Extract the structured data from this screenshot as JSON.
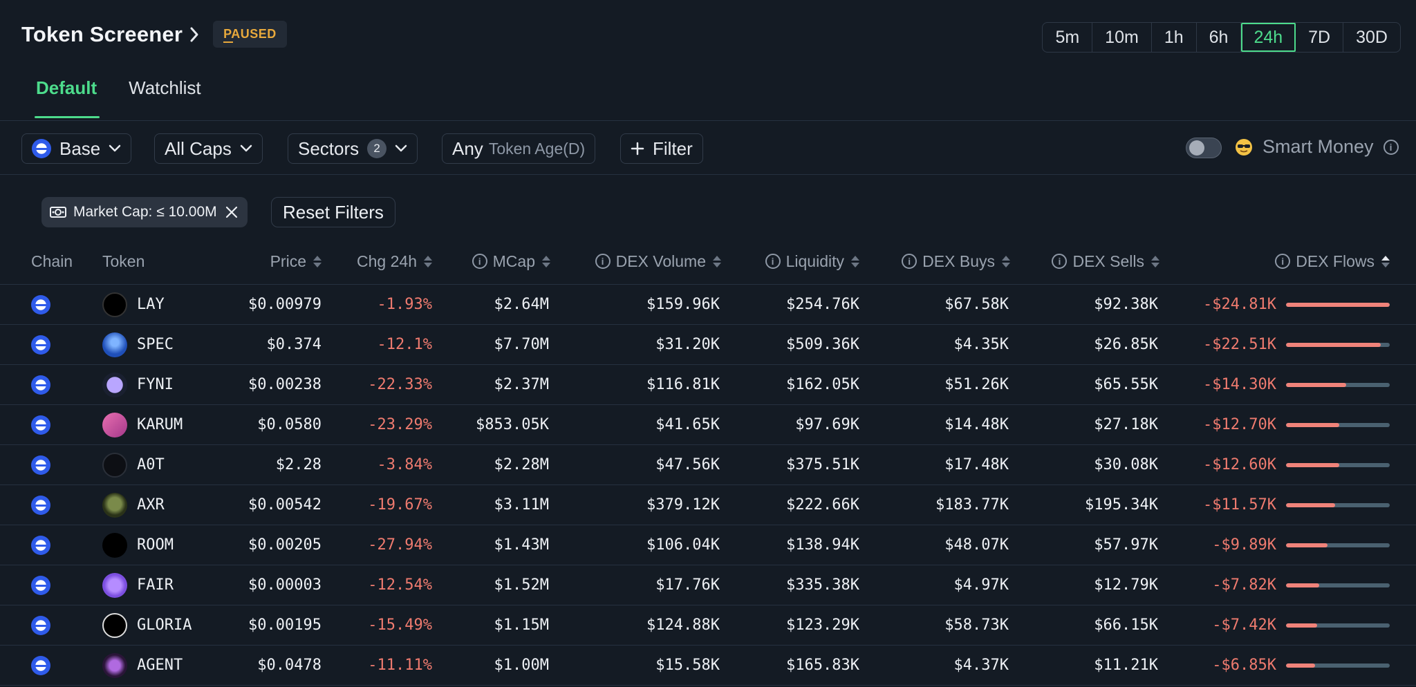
{
  "header": {
    "title": "Token Screener",
    "status": "PAUSED",
    "timeframes": [
      "5m",
      "10m",
      "1h",
      "6h",
      "24h",
      "7D",
      "30D"
    ],
    "active_timeframe": "24h",
    "tabs": [
      {
        "label": "Default",
        "active": true
      },
      {
        "label": "Watchlist",
        "active": false
      }
    ]
  },
  "filters": {
    "chain": "Base",
    "caps": "All Caps",
    "sectors": "Sectors",
    "sectors_count": "2",
    "age_value": "Any",
    "age_label": "Token Age(D)",
    "filter_button": "Filter",
    "smart_money": "Smart Money",
    "smart_money_enabled": false
  },
  "active_filters": {
    "chip": "Market Cap: ≤ 10.00M",
    "reset": "Reset Filters"
  },
  "table": {
    "columns": {
      "chain": "Chain",
      "token": "Token",
      "price": "Price",
      "chg": "Chg 24h",
      "mcap": "MCap",
      "dex_volume": "DEX Volume",
      "liquidity": "Liquidity",
      "dex_buys": "DEX Buys",
      "dex_sells": "DEX Sells",
      "dex_flows": "DEX Flows"
    },
    "rows": [
      {
        "token": "LAY",
        "price": "$0.00979",
        "chg": "-1.93%",
        "mcap": "$2.64M",
        "vol": "$159.96K",
        "liq": "$254.76K",
        "buys": "$67.58K",
        "sells": "$92.38K",
        "flow": "-$24.81K",
        "flow_frac": 1.0
      },
      {
        "token": "SPEC",
        "price": "$0.374",
        "chg": "-12.1%",
        "mcap": "$7.70M",
        "vol": "$31.20K",
        "liq": "$509.36K",
        "buys": "$4.35K",
        "sells": "$26.85K",
        "flow": "-$22.51K",
        "flow_frac": 0.91
      },
      {
        "token": "FYNI",
        "price": "$0.00238",
        "chg": "-22.33%",
        "mcap": "$2.37M",
        "vol": "$116.81K",
        "liq": "$162.05K",
        "buys": "$51.26K",
        "sells": "$65.55K",
        "flow": "-$14.30K",
        "flow_frac": 0.58
      },
      {
        "token": "KARUM",
        "price": "$0.0580",
        "chg": "-23.29%",
        "mcap": "$853.05K",
        "vol": "$41.65K",
        "liq": "$97.69K",
        "buys": "$14.48K",
        "sells": "$27.18K",
        "flow": "-$12.70K",
        "flow_frac": 0.51
      },
      {
        "token": "A0T",
        "price": "$2.28",
        "chg": "-3.84%",
        "mcap": "$2.28M",
        "vol": "$47.56K",
        "liq": "$375.51K",
        "buys": "$17.48K",
        "sells": "$30.08K",
        "flow": "-$12.60K",
        "flow_frac": 0.51
      },
      {
        "token": "AXR",
        "price": "$0.00542",
        "chg": "-19.67%",
        "mcap": "$3.11M",
        "vol": "$379.12K",
        "liq": "$222.66K",
        "buys": "$183.77K",
        "sells": "$195.34K",
        "flow": "-$11.57K",
        "flow_frac": 0.47
      },
      {
        "token": "ROOM",
        "price": "$0.00205",
        "chg": "-27.94%",
        "mcap": "$1.43M",
        "vol": "$106.04K",
        "liq": "$138.94K",
        "buys": "$48.07K",
        "sells": "$57.97K",
        "flow": "-$9.89K",
        "flow_frac": 0.4
      },
      {
        "token": "FAIR",
        "price": "$0.00003",
        "chg": "-12.54%",
        "mcap": "$1.52M",
        "vol": "$17.76K",
        "liq": "$335.38K",
        "buys": "$4.97K",
        "sells": "$12.79K",
        "flow": "-$7.82K",
        "flow_frac": 0.32
      },
      {
        "token": "GLORIA",
        "price": "$0.00195",
        "chg": "-15.49%",
        "mcap": "$1.15M",
        "vol": "$124.88K",
        "liq": "$123.29K",
        "buys": "$58.73K",
        "sells": "$66.15K",
        "flow": "-$7.42K",
        "flow_frac": 0.3
      },
      {
        "token": "AGENT",
        "price": "$0.0478",
        "chg": "-11.11%",
        "mcap": "$1.00M",
        "vol": "$15.58K",
        "liq": "$165.83K",
        "buys": "$4.37K",
        "sells": "$11.21K",
        "flow": "-$6.85K",
        "flow_frac": 0.28
      }
    ]
  },
  "colors": {
    "accent": "#4ddc8c",
    "negative": "#ef7b6f",
    "paused": "#e8a93c",
    "background": "#141b24"
  }
}
